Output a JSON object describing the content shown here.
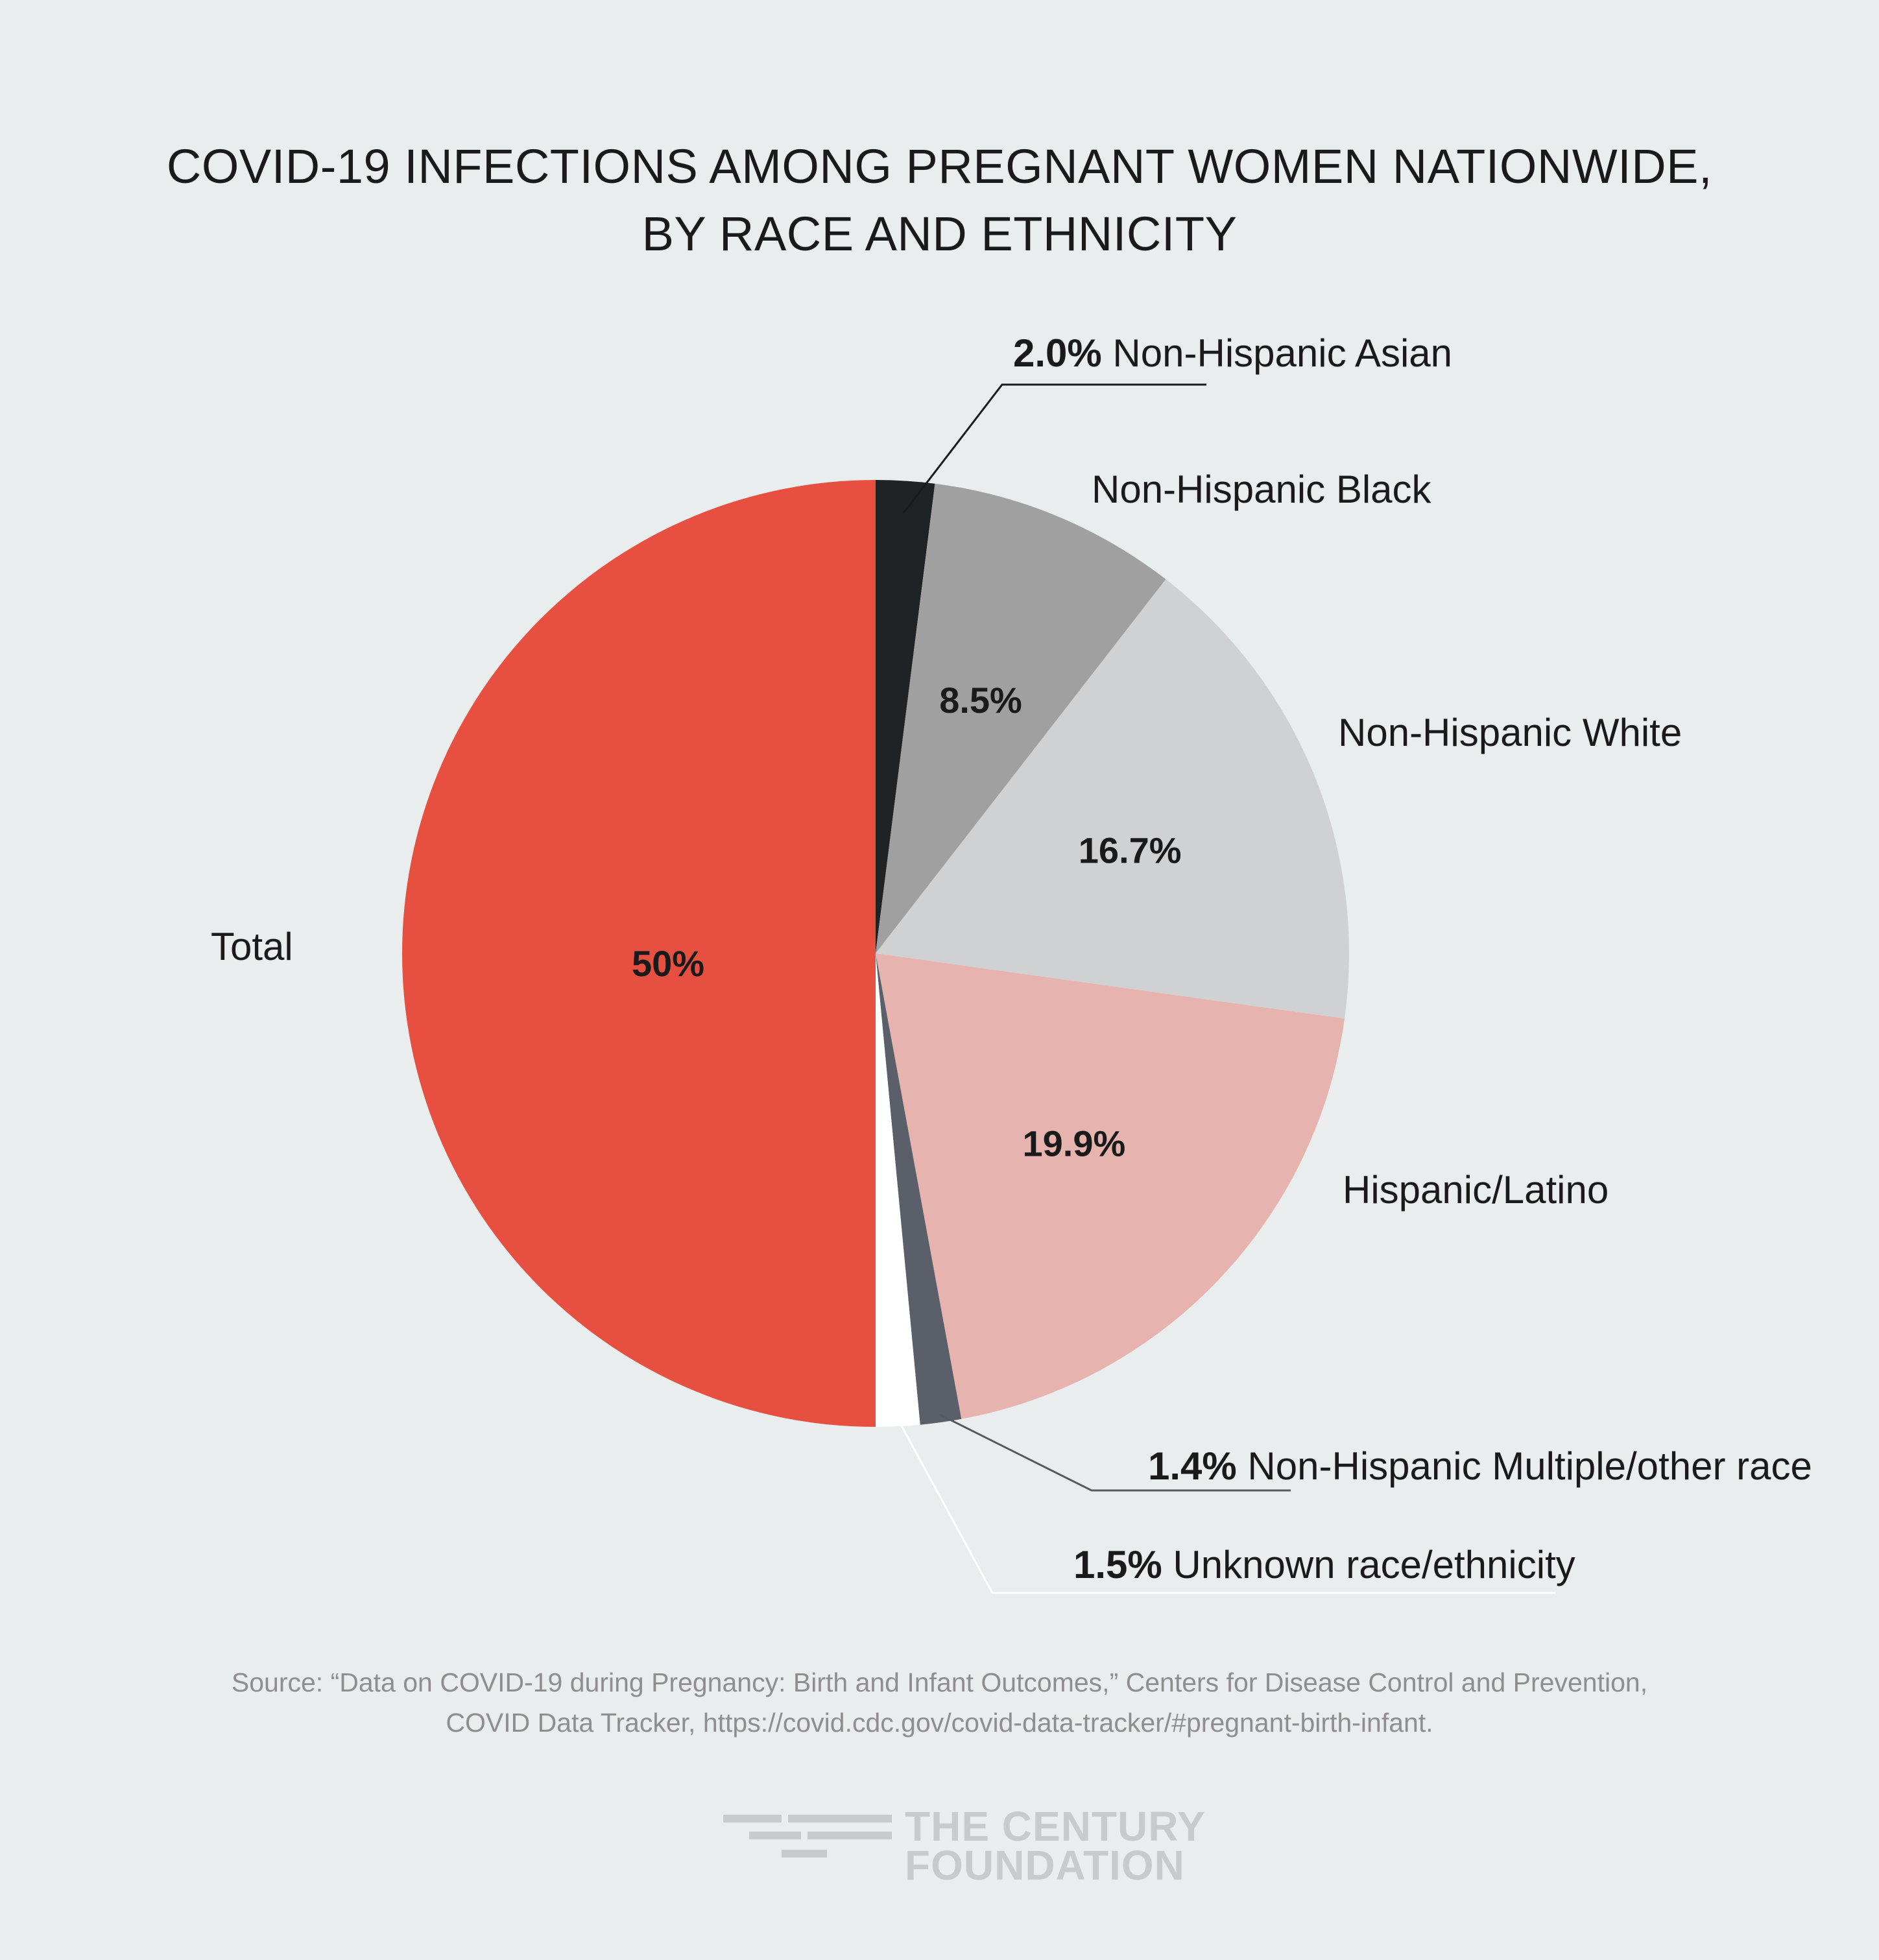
{
  "title_line1": "COVID-19 INFECTIONS AMONG PREGNANT WOMEN NATIONWIDE,",
  "title_line2": "BY RACE AND ETHNICITY",
  "source_line1": "Source: “Data on COVID-19 during Pregnancy: Birth and Infant Outcomes,” Centers for Disease Control and Prevention,",
  "source_line2": "COVID Data Tracker, https://covid.cdc.gov/covid-data-tracker/#pregnant-birth-infant.",
  "logo": {
    "line1": "THE CENTURY",
    "line2": "FOUNDATION"
  },
  "colors": {
    "background": "#eaeded",
    "total": "#e75040",
    "asian": "#202326",
    "black": "#a0a0a0",
    "white": "#d0d1d2",
    "hispanic": "#e7b3ae",
    "multiple": "#5b5f69",
    "unknown": "#ffffff"
  },
  "chart_data": {
    "type": "pie",
    "title": "COVID-19 INFECTIONS AMONG PREGNANT WOMEN NATIONWIDE, BY RACE AND ETHNICITY",
    "slices": [
      {
        "label": "Non-Hispanic Asian",
        "value": 2.0,
        "value_label": "2.0%",
        "color": "#202326"
      },
      {
        "label": "Non-Hispanic Black",
        "value": 8.5,
        "value_label": "8.5%",
        "color": "#a0a0a0"
      },
      {
        "label": "Non-Hispanic White",
        "value": 16.7,
        "value_label": "16.7%",
        "color": "#d0d1d2"
      },
      {
        "label": "Hispanic/Latino",
        "value": 19.9,
        "value_label": "19.9%",
        "color": "#e7b3ae"
      },
      {
        "label": "Non-Hispanic Multiple/other race",
        "value": 1.4,
        "value_label": "1.4%",
        "color": "#5b5f69"
      },
      {
        "label": "Unknown race/ethnicity",
        "value": 1.5,
        "value_label": "1.5%",
        "color": "#ffffff"
      },
      {
        "label": "Total",
        "value": 50,
        "value_label": "50%",
        "color": "#e75040"
      }
    ]
  }
}
